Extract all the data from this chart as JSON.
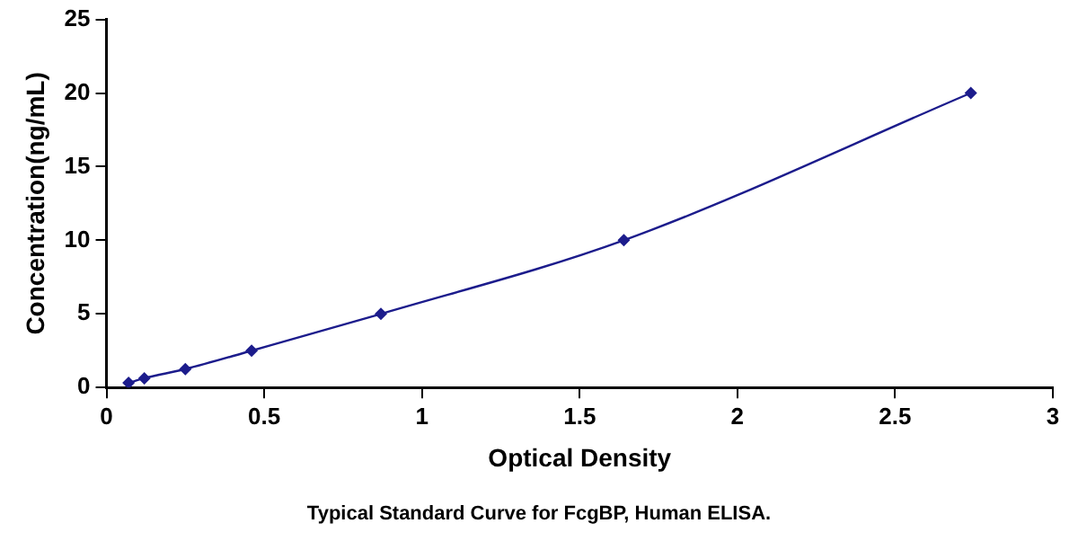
{
  "chart_data": {
    "type": "line",
    "xlabel": "Optical Density",
    "ylabel": "Concentration(ng/mL)",
    "x": [
      0.07,
      0.12,
      0.25,
      0.46,
      0.87,
      1.64,
      2.74
    ],
    "values": [
      0.31,
      0.63,
      1.25,
      2.5,
      5,
      10,
      20
    ],
    "color": "#1c1c8c",
    "marker": "diamond",
    "line_style": "solid",
    "xlim": [
      0,
      3
    ],
    "xticks": [
      0,
      0.5,
      1,
      1.5,
      2,
      2.5,
      3
    ],
    "ylim": [
      0,
      25
    ],
    "yticks": [
      0,
      5,
      10,
      15,
      20,
      25
    ],
    "grid": false,
    "legend": false,
    "annotations": [
      "Typical Standard Curve for FcgBP, Human ELISA."
    ]
  }
}
